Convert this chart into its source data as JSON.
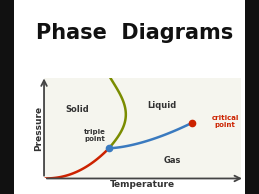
{
  "title": "Phase  Diagrams",
  "xlabel": "Temperature",
  "ylabel": "Pressure",
  "bg_color": "#ffffff",
  "border_color": "#1a1a1a",
  "plot_bg": "#f5f5ee",
  "title_color": "#111111",
  "solid_label": "Solid",
  "liquid_label": "Liquid",
  "gas_label": "Gas",
  "triple_label": "triple\npoint",
  "critical_label": "critical\npoint",
  "triple_point": [
    0.33,
    0.3
  ],
  "critical_point": [
    0.75,
    0.55
  ],
  "solid_liquid_color": "#7a8c00",
  "liquid_gas_color": "#3a7abf",
  "gas_curve_color": "#cc2200",
  "critical_dot_color": "#cc2200",
  "triple_dot_color": "#3a7abf",
  "label_color": "#333333",
  "critical_text_color": "#cc2200",
  "arrow_color": "#444444"
}
